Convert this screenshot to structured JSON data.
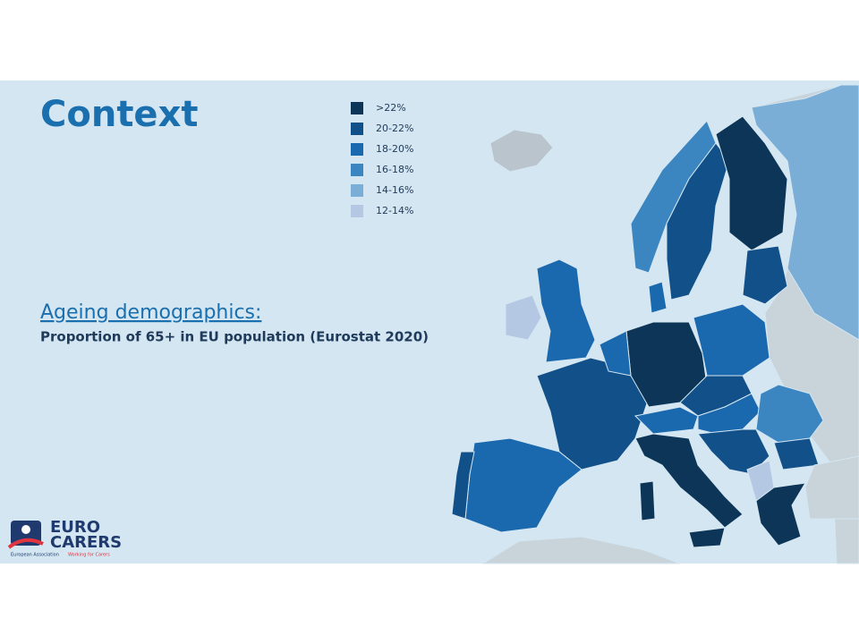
{
  "title": "Context",
  "legend": [
    {
      "label": ">22%",
      "color": "#0d3557"
    },
    {
      "label": "20-22%",
      "color": "#125089"
    },
    {
      "label": "18-20%",
      "color": "#1a68ad"
    },
    {
      "label": "16-18%",
      "color": "#3b86c0"
    },
    {
      "label": "14-16%",
      "color": "#7aaed6"
    },
    {
      "label": "12-14%",
      "color": "#b4c8e4"
    }
  ],
  "subtitle": "Ageing demographics:",
  "description": "Proportion of 65+ in EU population (Eurostat 2020)",
  "logo": {
    "line1": "EURO",
    "line2": "CARERS",
    "tagline1": "European Association",
    "tagline2": "Working for Carers"
  }
}
